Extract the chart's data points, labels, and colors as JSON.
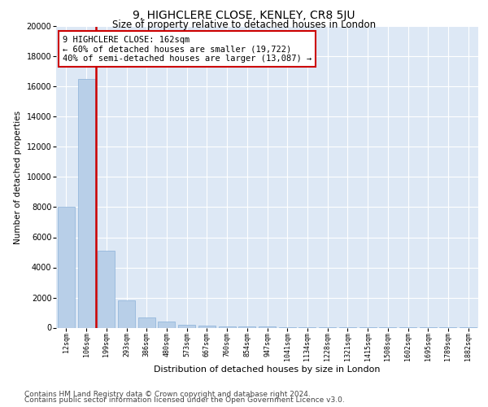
{
  "title": "9, HIGHCLERE CLOSE, KENLEY, CR8 5JU",
  "subtitle": "Size of property relative to detached houses in London",
  "xlabel": "Distribution of detached houses by size in London",
  "ylabel": "Number of detached properties",
  "categories": [
    "12sqm",
    "106sqm",
    "199sqm",
    "293sqm",
    "386sqm",
    "480sqm",
    "573sqm",
    "667sqm",
    "760sqm",
    "854sqm",
    "947sqm",
    "1041sqm",
    "1134sqm",
    "1228sqm",
    "1321sqm",
    "1415sqm",
    "1508sqm",
    "1602sqm",
    "1695sqm",
    "1789sqm",
    "1882sqm"
  ],
  "values": [
    8000,
    16500,
    5100,
    1800,
    700,
    380,
    200,
    140,
    100,
    70,
    55,
    40,
    28,
    18,
    12,
    9,
    7,
    5,
    4,
    3,
    2
  ],
  "bar_color": "#b8cfe8",
  "bar_edgecolor": "#8ab0d8",
  "vline_color": "#cc0000",
  "annotation_text": "9 HIGHCLERE CLOSE: 162sqm\n← 60% of detached houses are smaller (19,722)\n40% of semi-detached houses are larger (13,087) →",
  "annotation_box_color": "#ffffff",
  "annotation_box_edgecolor": "#cc0000",
  "ylim": [
    0,
    20000
  ],
  "yticks": [
    0,
    2000,
    4000,
    6000,
    8000,
    10000,
    12000,
    14000,
    16000,
    18000,
    20000
  ],
  "background_color": "#dde8f5",
  "footer_line1": "Contains HM Land Registry data © Crown copyright and database right 2024.",
  "footer_line2": "Contains public sector information licensed under the Open Government Licence v3.0.",
  "title_fontsize": 10,
  "subtitle_fontsize": 8.5,
  "annotation_fontsize": 7.5,
  "footer_fontsize": 6.5,
  "ylabel_fontsize": 7.5,
  "xlabel_fontsize": 8.0,
  "ytick_fontsize": 7,
  "xtick_fontsize": 6
}
